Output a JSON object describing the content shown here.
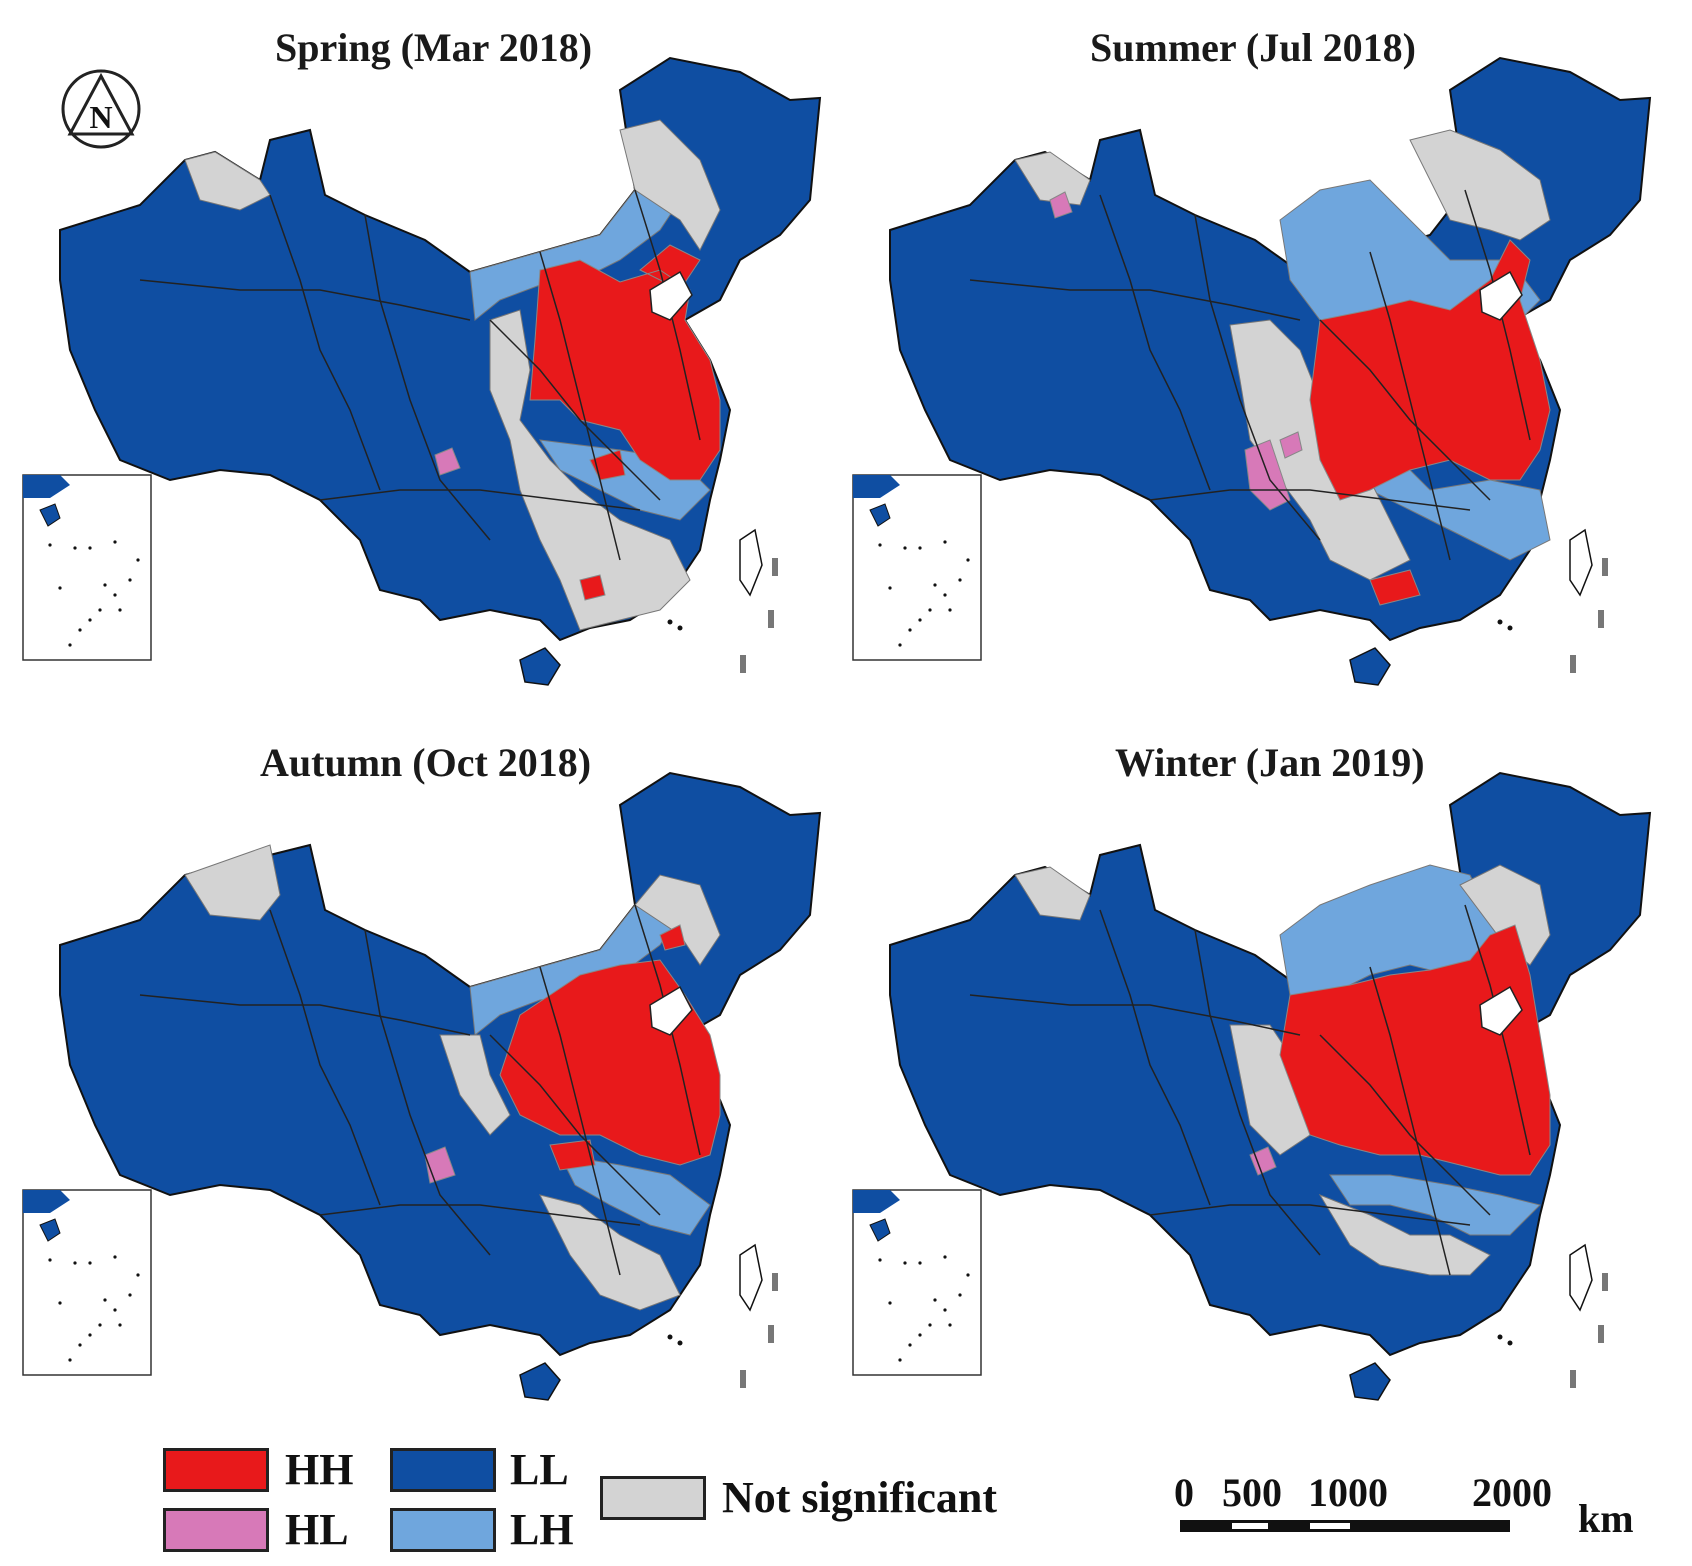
{
  "panels": [
    {
      "id": "spring",
      "title": "Spring (Mar 2018)",
      "pink_west": true,
      "pink_north": false,
      "ne_red": true
    },
    {
      "id": "summer",
      "title": "Summer (Jul 2018)",
      "pink_west": true,
      "pink_north": true,
      "ne_red": true
    },
    {
      "id": "autumn",
      "title": "Autumn (Oct 2018)",
      "pink_west": true,
      "pink_north": false,
      "ne_red": false
    },
    {
      "id": "winter",
      "title": "Winter (Jan 2019)",
      "pink_west": true,
      "pink_north": false,
      "ne_red": true
    }
  ],
  "north_arrow": {
    "letter": "N"
  },
  "legend": {
    "items": [
      {
        "code": "HH",
        "label": "HH",
        "color": "#e8191b"
      },
      {
        "code": "HL",
        "label": "HL",
        "color": "#d779b8"
      },
      {
        "code": "LL",
        "label": "LL",
        "color": "#0f4ea2"
      },
      {
        "code": "LH",
        "label": "LH",
        "color": "#6fa6dd"
      },
      {
        "code": "NS",
        "label": "Not significant",
        "color": "#d3d3d3"
      }
    ]
  },
  "scale_bar": {
    "ticks": [
      "0",
      "500",
      "1000",
      "2000"
    ],
    "unit": "km"
  }
}
